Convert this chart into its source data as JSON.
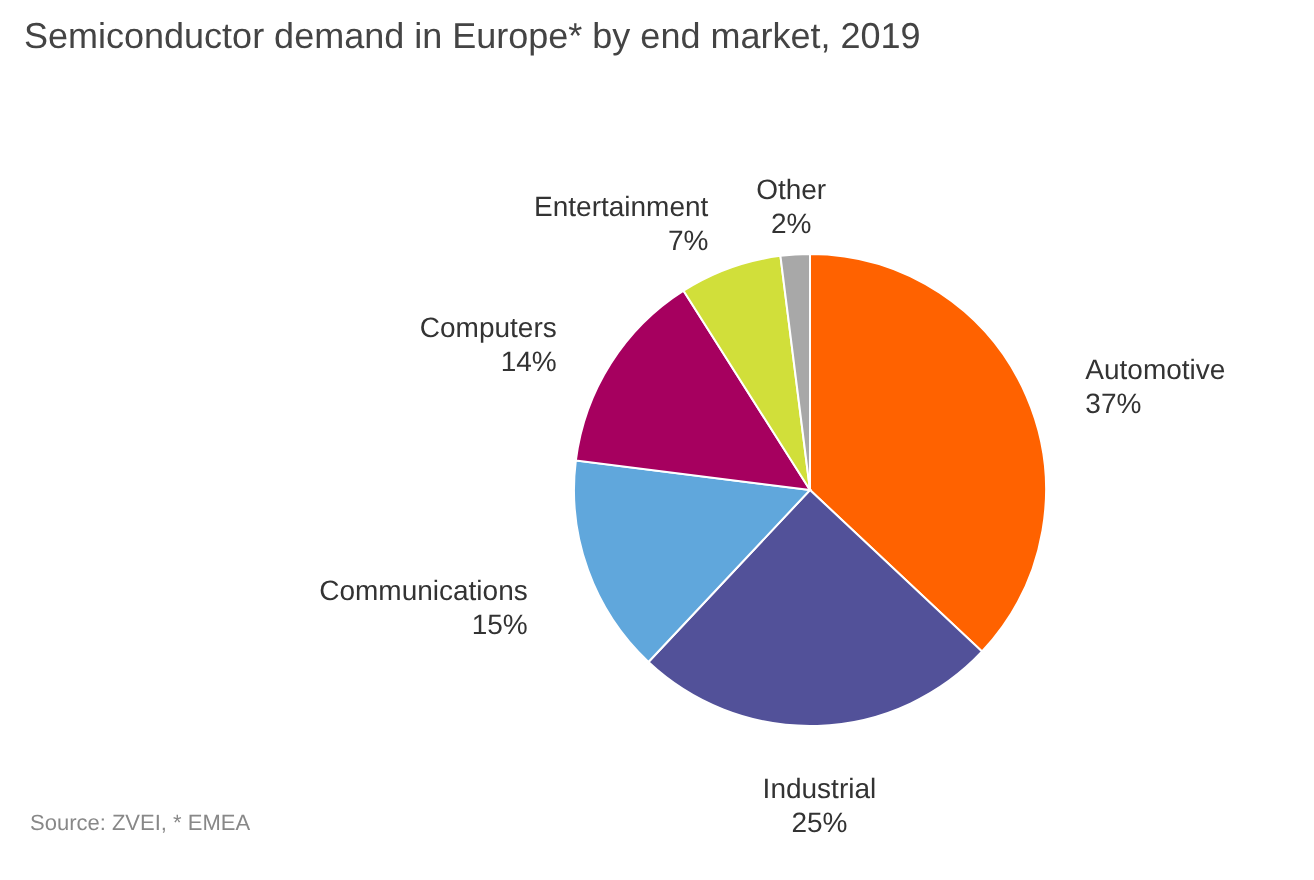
{
  "chart_data": {
    "type": "pie",
    "title": "Semiconductor demand in Europe* by end market, 2019",
    "categories": [
      "Automotive",
      "Industrial",
      "Communications",
      "Computers",
      "Entertainment",
      "Other"
    ],
    "values": [
      37,
      25,
      15,
      14,
      7,
      2
    ],
    "value_labels": [
      "37%",
      "25%",
      "15%",
      "14%",
      "7%",
      "2%"
    ],
    "colors": [
      "#ff6200",
      "#525199",
      "#60a7dc",
      "#a6005f",
      "#d1df3a",
      "#a8a8a8"
    ],
    "annotations": [
      "Source: ZVEI, * EMEA"
    ],
    "legend": false
  }
}
